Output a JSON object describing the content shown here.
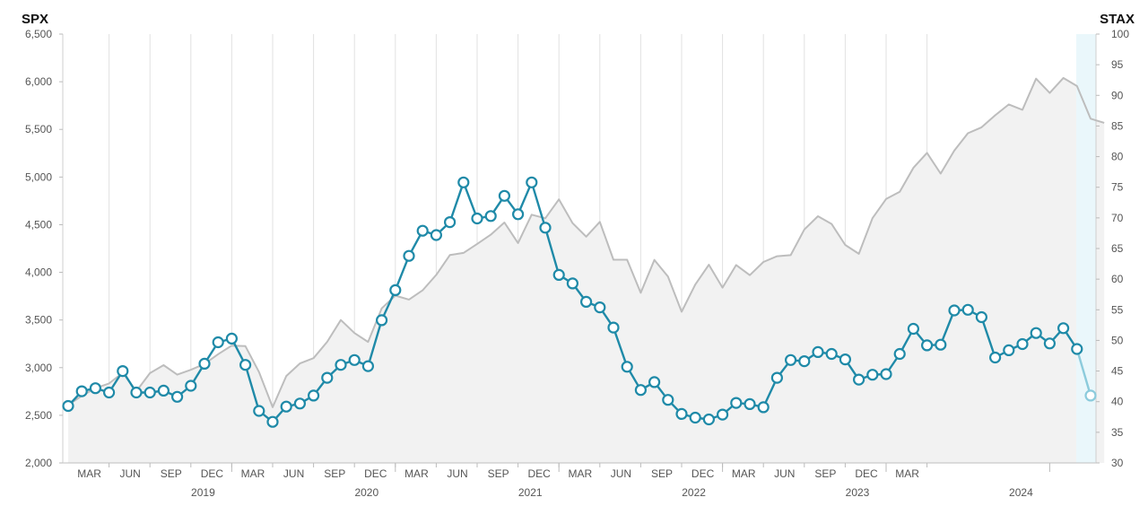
{
  "chart_data": {
    "type": "line",
    "left_axis": {
      "label": "SPX",
      "ylim": [
        2000,
        6500
      ],
      "ticks": [
        "2,000",
        "2,500",
        "3,000",
        "3,500",
        "4,000",
        "4,500",
        "5,000",
        "5,500",
        "6,000",
        "6,500"
      ]
    },
    "right_axis": {
      "label": "STAX",
      "ylim": [
        30,
        100
      ],
      "ticks": [
        "30",
        "35",
        "40",
        "45",
        "50",
        "55",
        "60",
        "65",
        "70",
        "75",
        "80",
        "85",
        "90",
        "95",
        "100"
      ]
    },
    "x_start": "2018-12",
    "x_end": "2024-04",
    "month_ticks": [
      {
        "date": "2019-03",
        "label": "MAR"
      },
      {
        "date": "2019-06",
        "label": "JUN"
      },
      {
        "date": "2019-09",
        "label": "SEP"
      },
      {
        "date": "2019-12",
        "label": "DEC"
      },
      {
        "date": "2020-03",
        "label": "MAR"
      },
      {
        "date": "2020-06",
        "label": "JUN"
      },
      {
        "date": "2020-09",
        "label": "SEP"
      },
      {
        "date": "2020-12",
        "label": "DEC"
      },
      {
        "date": "2021-03",
        "label": "MAR"
      },
      {
        "date": "2021-06",
        "label": "JUN"
      },
      {
        "date": "2021-09",
        "label": "SEP"
      },
      {
        "date": "2021-12",
        "label": "DEC"
      },
      {
        "date": "2022-03",
        "label": "MAR"
      },
      {
        "date": "2022-06",
        "label": "JUN"
      },
      {
        "date": "2022-09",
        "label": "SEP"
      },
      {
        "date": "2022-12",
        "label": "DEC"
      },
      {
        "date": "2023-03",
        "label": "MAR"
      },
      {
        "date": "2023-06",
        "label": "JUN"
      },
      {
        "date": "2023-09",
        "label": "SEP"
      },
      {
        "date": "2023-12",
        "label": "DEC"
      },
      {
        "date": "2024-03",
        "label": "MAR"
      }
    ],
    "year_labels": [
      {
        "date": "2019-12",
        "label": "2019"
      },
      {
        "date": "2020-12",
        "label": "2020"
      },
      {
        "date": "2021-12",
        "label": "2021"
      },
      {
        "date": "2022-12",
        "label": "2022"
      },
      {
        "date": "2023-12",
        "label": "2023"
      },
      {
        "date": "2024-12",
        "label": "2024"
      }
    ],
    "series": [
      {
        "name": "SPX",
        "axis": "left",
        "color": "#bdbdbd",
        "fill": "#f2f2f2",
        "points": [
          [
            "2018-12",
            2607
          ],
          [
            "2019-01",
            2704
          ],
          [
            "2019-02",
            2784
          ],
          [
            "2019-03",
            2834
          ],
          [
            "2019-04",
            2946
          ],
          [
            "2019-05",
            2752
          ],
          [
            "2019-06",
            2942
          ],
          [
            "2019-07",
            3026
          ],
          [
            "2019-08",
            2926
          ],
          [
            "2019-09",
            2977
          ],
          [
            "2019-10",
            3038
          ],
          [
            "2019-11",
            3141
          ],
          [
            "2019-12",
            3231
          ],
          [
            "2020-01",
            3226
          ],
          [
            "2020-02",
            2954
          ],
          [
            "2020-03",
            2585
          ],
          [
            "2020-04",
            2912
          ],
          [
            "2020-05",
            3044
          ],
          [
            "2020-06",
            3100
          ],
          [
            "2020-07",
            3271
          ],
          [
            "2020-08",
            3500
          ],
          [
            "2020-09",
            3363
          ],
          [
            "2020-10",
            3270
          ],
          [
            "2020-11",
            3622
          ],
          [
            "2020-12",
            3756
          ],
          [
            "2021-01",
            3714
          ],
          [
            "2021-02",
            3811
          ],
          [
            "2021-03",
            3973
          ],
          [
            "2021-04",
            4181
          ],
          [
            "2021-05",
            4204
          ],
          [
            "2021-06",
            4298
          ],
          [
            "2021-07",
            4395
          ],
          [
            "2021-08",
            4523
          ],
          [
            "2021-09",
            4307
          ],
          [
            "2021-10",
            4605
          ],
          [
            "2021-11",
            4567
          ],
          [
            "2021-12",
            4766
          ],
          [
            "2022-01",
            4516
          ],
          [
            "2022-02",
            4374
          ],
          [
            "2022-03",
            4530
          ],
          [
            "2022-04",
            4132
          ],
          [
            "2022-05",
            4132
          ],
          [
            "2022-06",
            3785
          ],
          [
            "2022-07",
            4130
          ],
          [
            "2022-08",
            3955
          ],
          [
            "2022-09",
            3586
          ],
          [
            "2022-10",
            3872
          ],
          [
            "2022-11",
            4080
          ],
          [
            "2022-12",
            3840
          ],
          [
            "2023-01",
            4077
          ],
          [
            "2023-02",
            3970
          ],
          [
            "2023-03",
            4109
          ],
          [
            "2023-04",
            4169
          ],
          [
            "2023-05",
            4180
          ],
          [
            "2023-06",
            4450
          ],
          [
            "2023-07",
            4589
          ],
          [
            "2023-08",
            4508
          ],
          [
            "2023-09",
            4288
          ],
          [
            "2023-10",
            4194
          ],
          [
            "2023-11",
            4568
          ],
          [
            "2023-12",
            4770
          ],
          [
            "2024-01",
            4846
          ],
          [
            "2024-02",
            5096
          ],
          [
            "2024-03",
            5254
          ],
          [
            "2024-04",
            5036
          ],
          [
            "2024-05",
            5277
          ],
          [
            "2024-06",
            5460
          ],
          [
            "2024-07",
            5522
          ],
          [
            "2024-08",
            5648
          ],
          [
            "2024-09",
            5762
          ],
          [
            "2024-10",
            5705
          ],
          [
            "2024-11",
            6032
          ],
          [
            "2024-12",
            5882
          ],
          [
            "2025-01",
            6040
          ],
          [
            "2025-02",
            5955
          ],
          [
            "2025-03",
            5612
          ],
          [
            "2025-04",
            5569
          ]
        ]
      },
      {
        "name": "STAX",
        "axis": "right",
        "color": "#1f8aa8",
        "points": [
          [
            "2018-12",
            39.3
          ],
          [
            "2019-01",
            41.7
          ],
          [
            "2019-02",
            42.2
          ],
          [
            "2019-03",
            41.5
          ],
          [
            "2019-04",
            45.0
          ],
          [
            "2019-05",
            41.5
          ],
          [
            "2019-06",
            41.5
          ],
          [
            "2019-07",
            41.8
          ],
          [
            "2019-08",
            40.8
          ],
          [
            "2019-09",
            42.6
          ],
          [
            "2019-10",
            46.2
          ],
          [
            "2019-11",
            49.7
          ],
          [
            "2019-12",
            50.3
          ],
          [
            "2020-01",
            46.0
          ],
          [
            "2020-02",
            38.5
          ],
          [
            "2020-03",
            36.7
          ],
          [
            "2020-04",
            39.2
          ],
          [
            "2020-05",
            39.7
          ],
          [
            "2020-06",
            41.0
          ],
          [
            "2020-07",
            43.9
          ],
          [
            "2020-08",
            46.0
          ],
          [
            "2020-09",
            46.8
          ],
          [
            "2020-10",
            45.8
          ],
          [
            "2020-11",
            53.3
          ],
          [
            "2020-12",
            58.2
          ],
          [
            "2021-01",
            63.8
          ],
          [
            "2021-02",
            67.9
          ],
          [
            "2021-03",
            67.2
          ],
          [
            "2021-04",
            69.3
          ],
          [
            "2021-05",
            75.8
          ],
          [
            "2021-06",
            69.9
          ],
          [
            "2021-07",
            70.3
          ],
          [
            "2021-08",
            73.6
          ],
          [
            "2021-09",
            70.6
          ],
          [
            "2021-10",
            75.8
          ],
          [
            "2021-11",
            68.4
          ],
          [
            "2021-12",
            60.7
          ],
          [
            "2022-01",
            59.3
          ],
          [
            "2022-02",
            56.3
          ],
          [
            "2022-03",
            55.4
          ],
          [
            "2022-04",
            52.1
          ],
          [
            "2022-05",
            45.7
          ],
          [
            "2022-06",
            41.9
          ],
          [
            "2022-07",
            43.2
          ],
          [
            "2022-08",
            40.3
          ],
          [
            "2022-09",
            38.0
          ],
          [
            "2022-10",
            37.4
          ],
          [
            "2022-11",
            37.1
          ],
          [
            "2022-12",
            37.9
          ],
          [
            "2023-01",
            39.8
          ],
          [
            "2023-02",
            39.6
          ],
          [
            "2023-03",
            39.1
          ],
          [
            "2023-04",
            43.9
          ],
          [
            "2023-05",
            46.8
          ],
          [
            "2023-06",
            46.6
          ],
          [
            "2023-07",
            48.1
          ],
          [
            "2023-08",
            47.8
          ],
          [
            "2023-09",
            46.9
          ],
          [
            "2023-10",
            43.6
          ],
          [
            "2023-11",
            44.4
          ],
          [
            "2023-12",
            44.5
          ],
          [
            "2024-01",
            47.8
          ],
          [
            "2024-02",
            51.9
          ],
          [
            "2024-03",
            49.2
          ],
          [
            "2024-04",
            49.3
          ],
          [
            "2024-05",
            54.9
          ],
          [
            "2024-06",
            55.0
          ],
          [
            "2024-07",
            53.8
          ],
          [
            "2024-08",
            47.2
          ],
          [
            "2024-09",
            48.4
          ],
          [
            "2024-10",
            49.4
          ],
          [
            "2024-11",
            51.2
          ],
          [
            "2024-12",
            49.5
          ],
          [
            "2025-01",
            52.0
          ],
          [
            "2025-02",
            48.6
          ],
          [
            "2025-03",
            41.0
          ]
        ]
      }
    ]
  }
}
